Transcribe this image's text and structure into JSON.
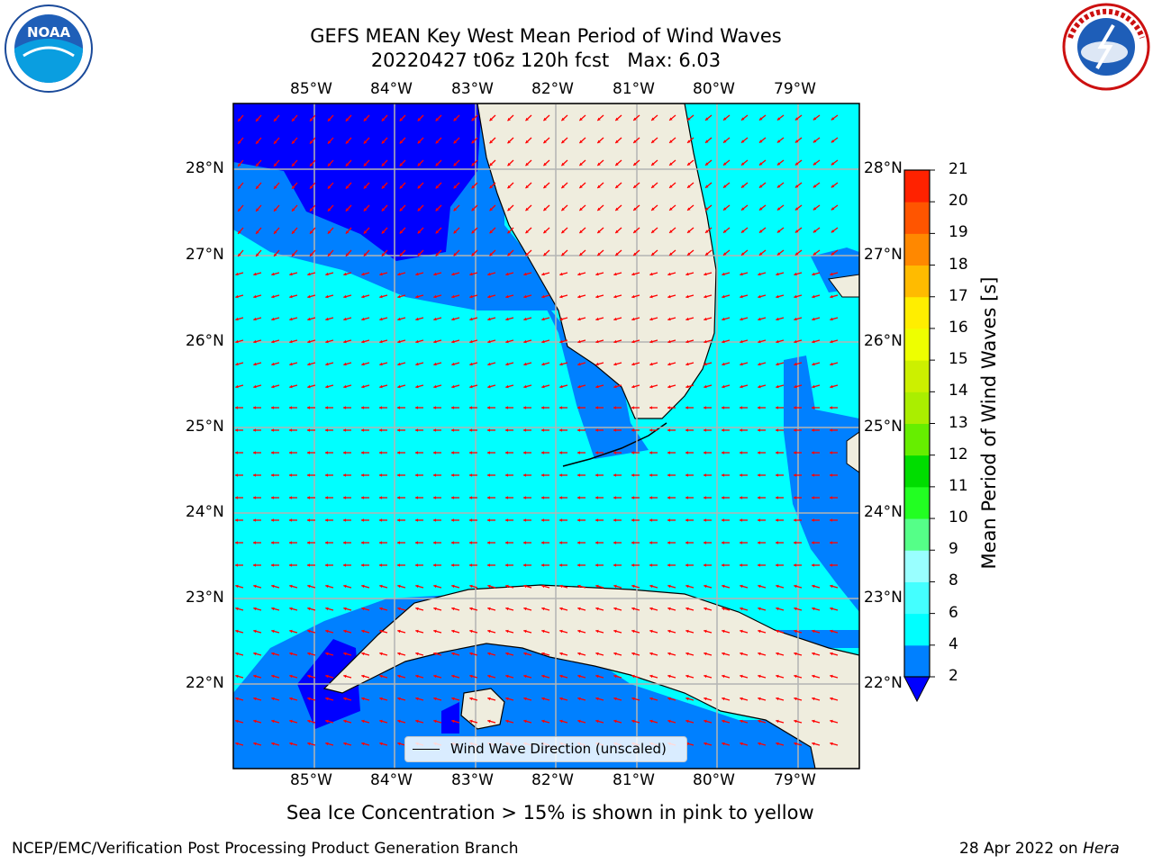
{
  "header": {
    "title_line1": "GEFS MEAN Key West Mean Period of Wind Waves",
    "title_line2": "20220427 t06z 120h fcst   Max: 6.03"
  },
  "logos": {
    "left": {
      "name": "NOAA",
      "icon": "noaa-logo",
      "text": "NOAA"
    },
    "right": {
      "name": "NATIONAL WEATHER SERVICE",
      "icon": "nws-logo"
    }
  },
  "map": {
    "lon_labels": [
      "85°W",
      "84°W",
      "83°W",
      "82°W",
      "81°W",
      "80°W",
      "79°W"
    ],
    "lat_labels": [
      "28°N",
      "27°N",
      "26°N",
      "25°N",
      "24°N",
      "23°N",
      "22°N"
    ],
    "colors": {
      "ocean_2_4": "#0080ff",
      "ocean_4_6": "#00ffff",
      "ocean_lt2": "#0000ff",
      "land": "#efedde",
      "arrows": "#ff0000",
      "grid": "#b4b4b4"
    },
    "arrows_direction": "westward"
  },
  "legend": {
    "text": "Wind Wave Direction (unscaled)"
  },
  "colorbar": {
    "label": "Mean Period of Wind Waves [s]",
    "ticks": [
      "2",
      "4",
      "6",
      "8",
      "9",
      "10",
      "11",
      "12",
      "13",
      "14",
      "15",
      "16",
      "17",
      "18",
      "19",
      "20",
      "21"
    ],
    "colors": [
      "#0080ff",
      "#00ffff",
      "#44ffff",
      "#99ffff",
      "#55ff88",
      "#22ff22",
      "#00dd00",
      "#66ee00",
      "#aaee00",
      "#ccf000",
      "#eeff00",
      "#ffee00",
      "#ffbb00",
      "#ff8800",
      "#ff5500",
      "#ff2200",
      "#ff0000"
    ],
    "under_color": "#0000ff"
  },
  "note": "Sea Ice Concentration > 15% is shown in pink to yellow",
  "footer": {
    "left": "NCEP/EMC/Verification Post Processing Product Generation Branch",
    "right_date": "28 Apr 2022 on",
    "right_host": "Hera"
  }
}
